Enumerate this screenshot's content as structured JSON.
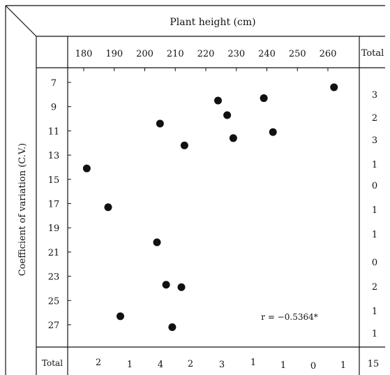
{
  "chart_data": {
    "type": "scatter",
    "xlabel": "Plant height (cm)",
    "ylabel": "Coefficient of variation (C.V.)",
    "x_ticks": [
      180,
      190,
      200,
      210,
      220,
      230,
      240,
      250,
      260
    ],
    "y_ticks": [
      7,
      9,
      11,
      13,
      15,
      17,
      19,
      21,
      23,
      25,
      27
    ],
    "xlim": [
      175,
      266
    ],
    "ylim": [
      6,
      28.5
    ],
    "y_inverted": true,
    "grid": false,
    "annotation": "r = −0.5364*",
    "total_label": "Total",
    "row_totals": [
      "3",
      "2",
      "3",
      "1",
      "0",
      "1",
      "1",
      "0",
      "2",
      "1",
      "1"
    ],
    "column_totals": [
      "2",
      "1",
      "4",
      "2",
      "3",
      "1",
      "1",
      "0",
      "1"
    ],
    "grand_total": "15",
    "points": [
      {
        "x": 262,
        "y": 7.4
      },
      {
        "x": 224,
        "y": 8.5
      },
      {
        "x": 239,
        "y": 8.3
      },
      {
        "x": 227,
        "y": 9.7
      },
      {
        "x": 205,
        "y": 10.4
      },
      {
        "x": 242,
        "y": 11.1
      },
      {
        "x": 229,
        "y": 11.6
      },
      {
        "x": 213,
        "y": 12.2
      },
      {
        "x": 181,
        "y": 14.1
      },
      {
        "x": 188,
        "y": 17.3
      },
      {
        "x": 204,
        "y": 20.2
      },
      {
        "x": 207,
        "y": 23.7
      },
      {
        "x": 212,
        "y": 23.9
      },
      {
        "x": 192,
        "y": 26.3
      },
      {
        "x": 209,
        "y": 27.2
      }
    ]
  }
}
